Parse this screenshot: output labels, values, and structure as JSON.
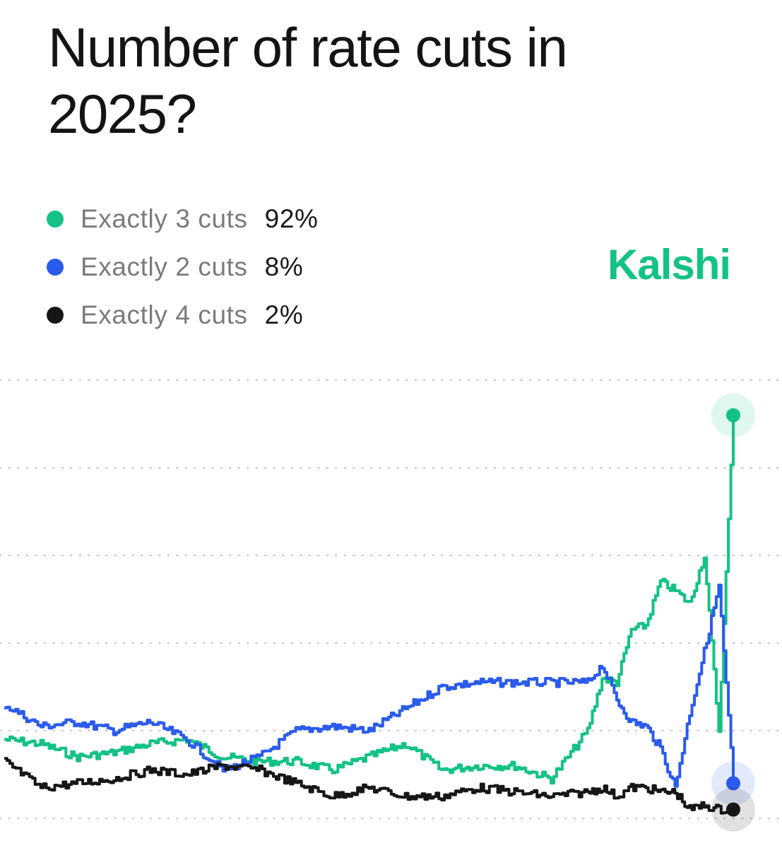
{
  "title": "Number of rate cuts in 2025?",
  "brand": {
    "name": "Kalshi",
    "color": "#13c284"
  },
  "chart_data": {
    "type": "line",
    "title": "Number of rate cuts in 2025?",
    "xlabel": "",
    "ylabel": "",
    "ylim": [
      0,
      100
    ],
    "grid": true,
    "gridlines": [
      0,
      20,
      40,
      60,
      80,
      100
    ],
    "legend_position": "top-left",
    "x": [
      0,
      5,
      10,
      15,
      20,
      25,
      30,
      35,
      40,
      45,
      50,
      55,
      60,
      65,
      70,
      75,
      80,
      82,
      84,
      86,
      88,
      90,
      92,
      94,
      96,
      98,
      100
    ],
    "series": [
      {
        "name": "Exactly 3 cuts",
        "label": "Exactly 3 cuts",
        "value_label": "92%",
        "color": "#13c284",
        "values": [
          18,
          17,
          14,
          15,
          17,
          18,
          14,
          13,
          13,
          11,
          14,
          17,
          11,
          12,
          12,
          9,
          20,
          32,
          31,
          43,
          44,
          54,
          52,
          49,
          60,
          20,
          92
        ]
      },
      {
        "name": "Exactly 2 cuts",
        "label": "Exactly 2 cuts",
        "value_label": "8%",
        "color": "#2b5bec",
        "values": [
          26,
          21,
          22,
          20,
          22,
          18,
          11,
          14,
          20,
          21,
          20,
          25,
          30,
          31,
          31,
          31,
          31,
          35,
          27,
          22,
          21,
          16,
          7,
          24,
          38,
          53,
          8
        ]
      },
      {
        "name": "Exactly 4 cuts",
        "label": "Exactly 4 cuts",
        "value_label": "2%",
        "color": "#161616",
        "values": [
          13,
          7,
          8,
          9,
          11,
          10,
          12,
          11,
          8,
          5,
          7,
          5,
          5,
          7,
          6,
          5,
          6,
          7,
          5,
          7,
          7,
          6,
          6,
          2,
          3,
          2,
          2
        ]
      }
    ]
  }
}
